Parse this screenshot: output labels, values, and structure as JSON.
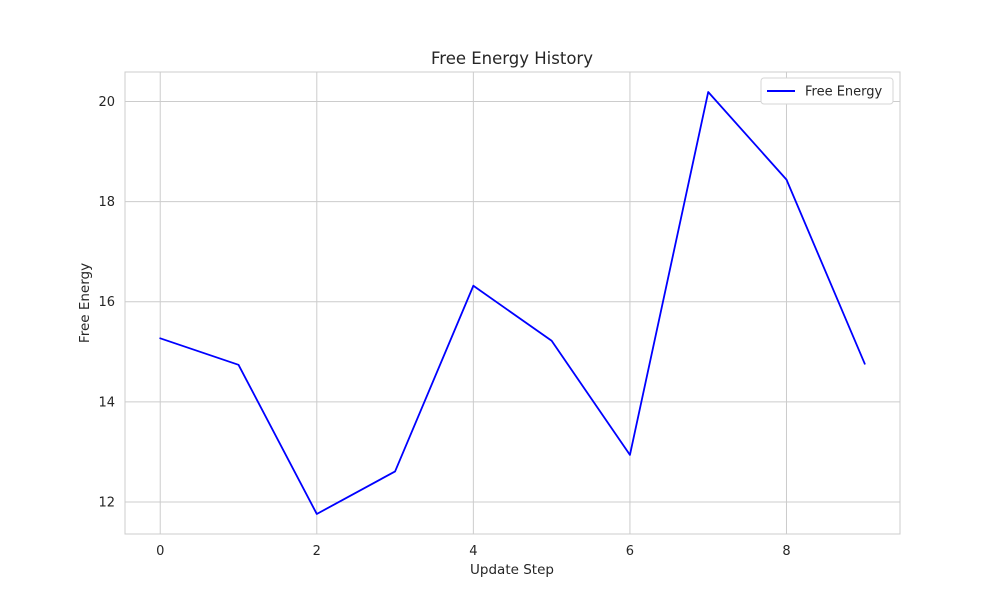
{
  "chart_data": {
    "type": "line",
    "title": "Free Energy History",
    "xlabel": "Update Step",
    "ylabel": "Free Energy",
    "x": [
      0,
      1,
      2,
      3,
      4,
      5,
      6,
      7,
      8,
      9
    ],
    "series": [
      {
        "name": "Free Energy",
        "color": "#0000ff",
        "values": [
          15.27,
          14.74,
          11.76,
          12.61,
          16.32,
          15.22,
          12.94,
          20.19,
          18.44,
          14.76
        ]
      }
    ],
    "xlim": [
      -0.45,
      9.45
    ],
    "ylim": [
      11.36,
      20.59
    ],
    "xticks": [
      0,
      2,
      4,
      6,
      8
    ],
    "yticks": [
      12,
      14,
      16,
      18,
      20
    ],
    "grid": true,
    "legend_position": "upper right",
    "grid_color": "#cccccc",
    "spine_color": "#cccccc"
  }
}
